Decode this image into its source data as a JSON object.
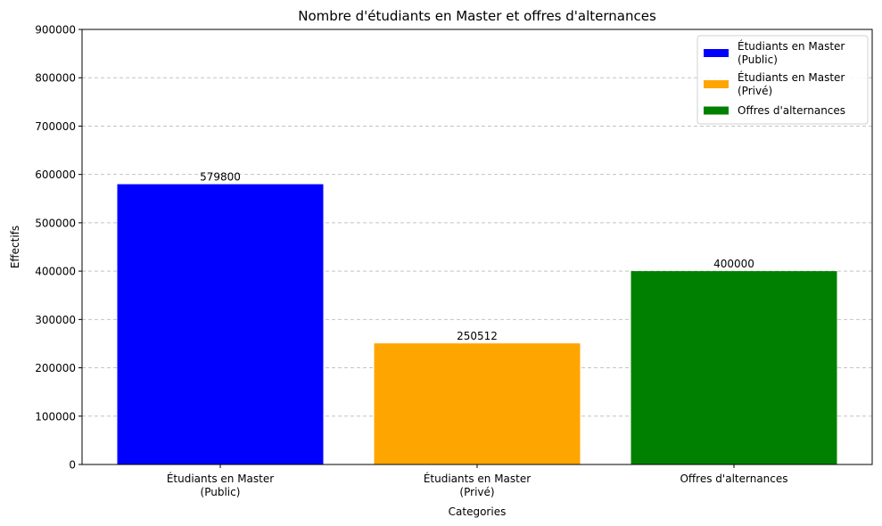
{
  "chart_data": {
    "type": "bar",
    "title": "Nombre d'étudiants en Master et offres d'alternances",
    "xlabel": "Categories",
    "ylabel": "Effectifs",
    "categories": [
      [
        "Étudiants en Master",
        "(Public)"
      ],
      [
        "Étudiants en Master",
        "(Privé)"
      ],
      [
        "Offres d'alternances"
      ]
    ],
    "values": [
      579800,
      250512,
      400000
    ],
    "colors": [
      "#0000ff",
      "#ffa500",
      "#008000"
    ],
    "ylim": [
      0,
      900000
    ],
    "yticks": [
      0,
      100000,
      200000,
      300000,
      400000,
      500000,
      600000,
      700000,
      800000,
      900000
    ],
    "grid": "y-dashed",
    "legend_position": "top-right",
    "legend": [
      [
        "Étudiants en Master",
        " (Public)"
      ],
      [
        "Étudiants en Master",
        " (Privé)"
      ],
      [
        "Offres d'alternances"
      ]
    ]
  }
}
